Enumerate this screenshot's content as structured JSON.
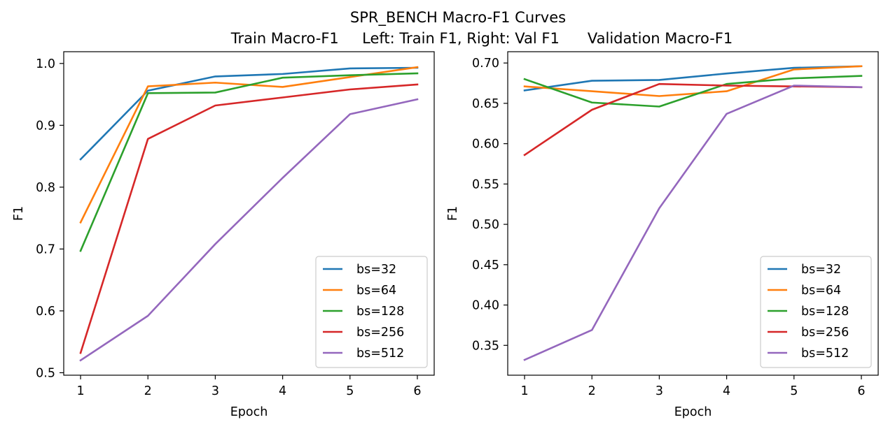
{
  "figure": {
    "suptitle_line1": "SPR_BENCH Macro-F1 Curves",
    "suptitle_line2": "Train Macro-F1     Left: Train F1, Right: Val F1      Validation Macro-F1"
  },
  "colors": {
    "bs=32": "#1f77b4",
    "bs=64": "#ff7f0e",
    "bs=128": "#2ca02c",
    "bs=256": "#d62728",
    "bs=512": "#9467bd"
  },
  "chart_data": [
    {
      "type": "line",
      "xlabel": "Epoch",
      "ylabel": "F1",
      "xlim": [
        0.75,
        6.25
      ],
      "ylim": [
        0.496,
        1.019
      ],
      "xticks": [
        1,
        2,
        3,
        4,
        5,
        6
      ],
      "yticks": [
        0.5,
        0.6,
        0.7,
        0.8,
        0.9,
        1.0
      ],
      "ytick_labels": [
        "0.5",
        "0.6",
        "0.7",
        "0.8",
        "0.9",
        "1.0"
      ],
      "legend_position": "lower-right",
      "grid": false,
      "x": [
        1,
        2,
        3,
        4,
        5,
        6
      ],
      "series": [
        {
          "name": "bs=32",
          "values": [
            0.845,
            0.956,
            0.979,
            0.983,
            0.992,
            0.993
          ]
        },
        {
          "name": "bs=64",
          "values": [
            0.743,
            0.963,
            0.969,
            0.962,
            0.978,
            0.994
          ]
        },
        {
          "name": "bs=128",
          "values": [
            0.697,
            0.952,
            0.953,
            0.977,
            0.981,
            0.984
          ]
        },
        {
          "name": "bs=256",
          "values": [
            0.532,
            0.878,
            0.932,
            0.945,
            0.958,
            0.966
          ]
        },
        {
          "name": "bs=512",
          "values": [
            0.52,
            0.592,
            0.708,
            0.815,
            0.918,
            0.942
          ]
        }
      ]
    },
    {
      "type": "line",
      "xlabel": "Epoch",
      "ylabel": "F1",
      "xlim": [
        0.75,
        6.25
      ],
      "ylim": [
        0.313,
        0.714
      ],
      "xticks": [
        1,
        2,
        3,
        4,
        5,
        6
      ],
      "yticks": [
        0.35,
        0.4,
        0.45,
        0.5,
        0.55,
        0.6,
        0.65,
        0.7
      ],
      "ytick_labels": [
        "0.35",
        "0.40",
        "0.45",
        "0.50",
        "0.55",
        "0.60",
        "0.65",
        "0.70"
      ],
      "legend_position": "lower-right",
      "grid": false,
      "x": [
        1,
        2,
        3,
        4,
        5,
        6
      ],
      "series": [
        {
          "name": "bs=32",
          "values": [
            0.666,
            0.678,
            0.679,
            0.687,
            0.694,
            0.696
          ]
        },
        {
          "name": "bs=64",
          "values": [
            0.671,
            0.665,
            0.659,
            0.665,
            0.692,
            0.696
          ]
        },
        {
          "name": "bs=128",
          "values": [
            0.68,
            0.651,
            0.646,
            0.674,
            0.681,
            0.684
          ]
        },
        {
          "name": "bs=256",
          "values": [
            0.586,
            0.642,
            0.674,
            0.672,
            0.671,
            0.67
          ]
        },
        {
          "name": "bs=512",
          "values": [
            0.332,
            0.369,
            0.52,
            0.637,
            0.672,
            0.67
          ]
        }
      ]
    }
  ]
}
